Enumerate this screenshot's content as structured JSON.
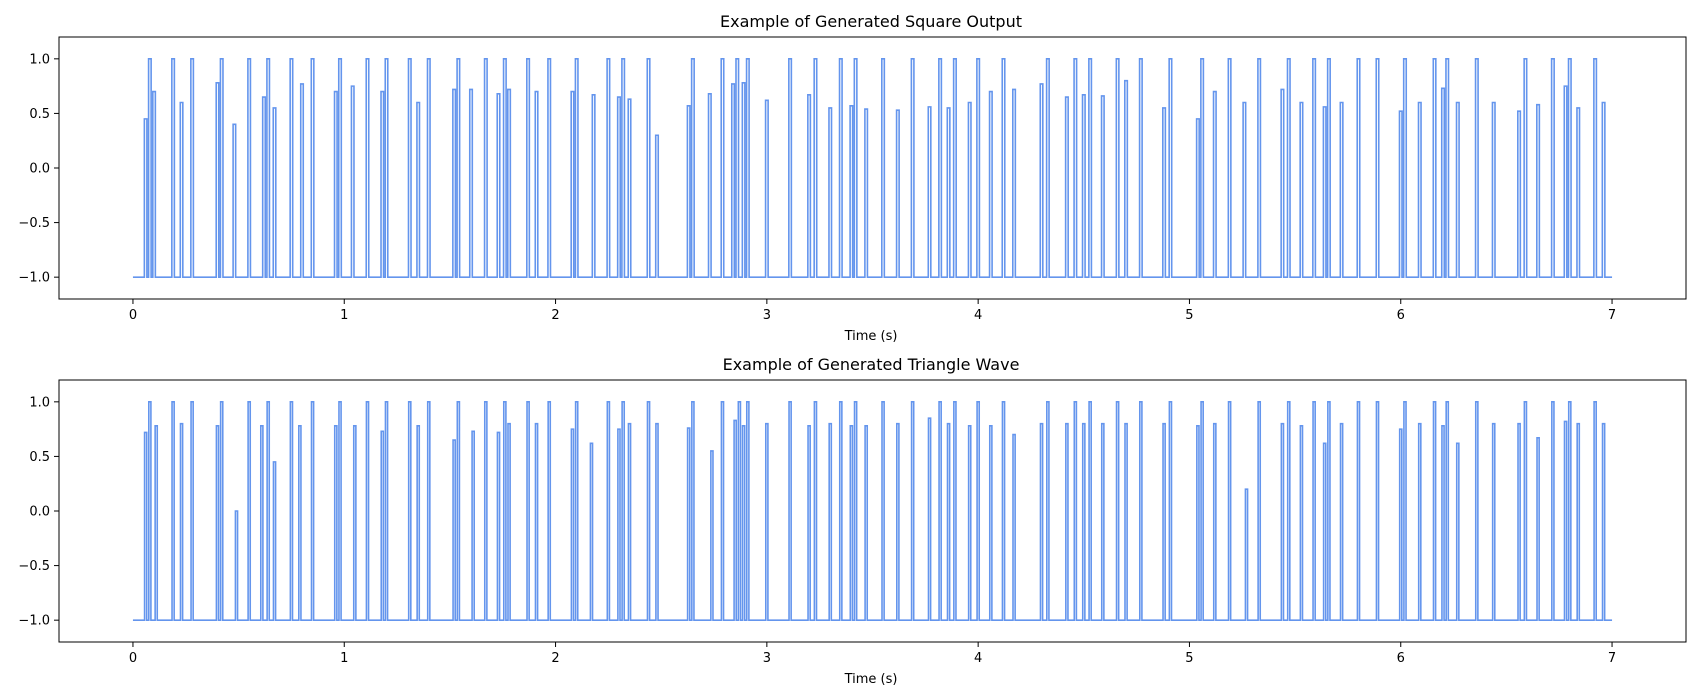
{
  "chart_data": [
    {
      "type": "line",
      "title": "Example of Generated Square Output",
      "xlabel": "Time (s)",
      "ylabel": "",
      "xlim": [
        -0.35,
        7.35
      ],
      "ylim": [
        -1.2,
        1.2
      ],
      "xticks": [
        0,
        1,
        2,
        3,
        4,
        5,
        6,
        7
      ],
      "yticks": [
        -1.0,
        -0.5,
        0.0,
        0.5,
        1.0
      ],
      "xtick_labels": [
        "0",
        "1",
        "2",
        "3",
        "4",
        "5",
        "6",
        "7"
      ],
      "ytick_labels": [
        "−1.0",
        "−0.5",
        "0.0",
        "0.5",
        "1.0"
      ],
      "grid": false,
      "baseline": -1.0,
      "pulse_width": 0.012,
      "series": [
        {
          "color": "#6495ed",
          "pulses": [
            [
              0.06,
              0.45
            ],
            [
              0.08,
              1.0
            ],
            [
              0.1,
              0.7
            ],
            [
              0.19,
              1.0
            ],
            [
              0.23,
              0.6
            ],
            [
              0.28,
              1.0
            ],
            [
              0.4,
              0.78
            ],
            [
              0.42,
              1.0
            ],
            [
              0.48,
              0.4
            ],
            [
              0.55,
              1.0
            ],
            [
              0.62,
              0.65
            ],
            [
              0.64,
              1.0
            ],
            [
              0.67,
              0.55
            ],
            [
              0.75,
              1.0
            ],
            [
              0.8,
              0.77
            ],
            [
              0.85,
              1.0
            ],
            [
              0.96,
              0.7
            ],
            [
              0.98,
              1.0
            ],
            [
              1.04,
              0.75
            ],
            [
              1.11,
              1.0
            ],
            [
              1.18,
              0.7
            ],
            [
              1.2,
              1.0
            ],
            [
              1.31,
              1.0
            ],
            [
              1.35,
              0.6
            ],
            [
              1.4,
              1.0
            ],
            [
              1.52,
              0.72
            ],
            [
              1.54,
              1.0
            ],
            [
              1.6,
              0.72
            ],
            [
              1.67,
              1.0
            ],
            [
              1.73,
              0.68
            ],
            [
              1.76,
              1.0
            ],
            [
              1.78,
              0.72
            ],
            [
              1.87,
              1.0
            ],
            [
              1.91,
              0.7
            ],
            [
              1.97,
              1.0
            ],
            [
              2.08,
              0.7
            ],
            [
              2.1,
              1.0
            ],
            [
              2.18,
              0.67
            ],
            [
              2.25,
              1.0
            ],
            [
              2.3,
              0.65
            ],
            [
              2.32,
              1.0
            ],
            [
              2.35,
              0.63
            ],
            [
              2.44,
              1.0
            ],
            [
              2.48,
              0.3
            ],
            [
              2.63,
              0.57
            ],
            [
              2.65,
              1.0
            ],
            [
              2.73,
              0.68
            ],
            [
              2.79,
              1.0
            ],
            [
              2.84,
              0.77
            ],
            [
              2.86,
              1.0
            ],
            [
              2.89,
              0.78
            ],
            [
              2.91,
              1.0
            ],
            [
              3.0,
              0.62
            ],
            [
              3.11,
              1.0
            ],
            [
              3.2,
              0.67
            ],
            [
              3.23,
              1.0
            ],
            [
              3.3,
              0.55
            ],
            [
              3.35,
              1.0
            ],
            [
              3.4,
              0.57
            ],
            [
              3.42,
              1.0
            ],
            [
              3.47,
              0.54
            ],
            [
              3.55,
              1.0
            ],
            [
              3.62,
              0.53
            ],
            [
              3.69,
              1.0
            ],
            [
              3.77,
              0.56
            ],
            [
              3.82,
              1.0
            ],
            [
              3.86,
              0.55
            ],
            [
              3.89,
              1.0
            ],
            [
              3.96,
              0.6
            ],
            [
              4.0,
              1.0
            ],
            [
              4.06,
              0.7
            ],
            [
              4.12,
              1.0
            ],
            [
              4.17,
              0.72
            ],
            [
              4.3,
              0.77
            ],
            [
              4.33,
              1.0
            ],
            [
              4.42,
              0.65
            ],
            [
              4.46,
              1.0
            ],
            [
              4.5,
              0.67
            ],
            [
              4.53,
              1.0
            ],
            [
              4.59,
              0.66
            ],
            [
              4.66,
              1.0
            ],
            [
              4.7,
              0.8
            ],
            [
              4.77,
              1.0
            ],
            [
              4.88,
              0.55
            ],
            [
              4.91,
              1.0
            ],
            [
              5.04,
              0.45
            ],
            [
              5.06,
              1.0
            ],
            [
              5.12,
              0.7
            ],
            [
              5.19,
              1.0
            ],
            [
              5.26,
              0.6
            ],
            [
              5.33,
              1.0
            ],
            [
              5.44,
              0.72
            ],
            [
              5.47,
              1.0
            ],
            [
              5.53,
              0.6
            ],
            [
              5.59,
              1.0
            ],
            [
              5.64,
              0.56
            ],
            [
              5.66,
              1.0
            ],
            [
              5.72,
              0.6
            ],
            [
              5.8,
              1.0
            ],
            [
              5.89,
              1.0
            ],
            [
              6.0,
              0.52
            ],
            [
              6.02,
              1.0
            ],
            [
              6.09,
              0.6
            ],
            [
              6.16,
              1.0
            ],
            [
              6.2,
              0.73
            ],
            [
              6.22,
              1.0
            ],
            [
              6.27,
              0.6
            ],
            [
              6.36,
              1.0
            ],
            [
              6.44,
              0.6
            ],
            [
              6.56,
              0.52
            ],
            [
              6.59,
              1.0
            ],
            [
              6.65,
              0.58
            ],
            [
              6.72,
              1.0
            ],
            [
              6.78,
              0.75
            ],
            [
              6.8,
              1.0
            ],
            [
              6.84,
              0.55
            ],
            [
              6.92,
              1.0
            ],
            [
              6.96,
              0.6
            ]
          ]
        }
      ]
    },
    {
      "type": "line",
      "title": "Example of Generated Triangle Wave",
      "xlabel": "Time (s)",
      "ylabel": "",
      "xlim": [
        -0.35,
        7.35
      ],
      "ylim": [
        -1.2,
        1.2
      ],
      "xticks": [
        0,
        1,
        2,
        3,
        4,
        5,
        6,
        7
      ],
      "yticks": [
        -1.0,
        -0.5,
        0.0,
        0.5,
        1.0
      ],
      "xtick_labels": [
        "0",
        "1",
        "2",
        "3",
        "4",
        "5",
        "6",
        "7"
      ],
      "ytick_labels": [
        "−1.0",
        "−0.5",
        "0.0",
        "0.5",
        "1.0"
      ],
      "grid": false,
      "baseline": -1.0,
      "pulse_width": 0.01,
      "series": [
        {
          "color": "#6495ed",
          "pulses": [
            [
              0.06,
              0.72
            ],
            [
              0.08,
              1.0
            ],
            [
              0.11,
              0.78
            ],
            [
              0.19,
              1.0
            ],
            [
              0.23,
              0.8
            ],
            [
              0.28,
              1.0
            ],
            [
              0.4,
              0.78
            ],
            [
              0.42,
              1.0
            ],
            [
              0.49,
              0.0
            ],
            [
              0.55,
              1.0
            ],
            [
              0.61,
              0.78
            ],
            [
              0.64,
              1.0
            ],
            [
              0.67,
              0.45
            ],
            [
              0.75,
              1.0
            ],
            [
              0.79,
              0.78
            ],
            [
              0.85,
              1.0
            ],
            [
              0.96,
              0.78
            ],
            [
              0.98,
              1.0
            ],
            [
              1.05,
              0.78
            ],
            [
              1.11,
              1.0
            ],
            [
              1.18,
              0.73
            ],
            [
              1.2,
              1.0
            ],
            [
              1.31,
              1.0
            ],
            [
              1.35,
              0.78
            ],
            [
              1.4,
              1.0
            ],
            [
              1.52,
              0.65
            ],
            [
              1.54,
              1.0
            ],
            [
              1.61,
              0.73
            ],
            [
              1.67,
              1.0
            ],
            [
              1.73,
              0.72
            ],
            [
              1.76,
              1.0
            ],
            [
              1.78,
              0.8
            ],
            [
              1.87,
              1.0
            ],
            [
              1.91,
              0.8
            ],
            [
              1.97,
              1.0
            ],
            [
              2.08,
              0.75
            ],
            [
              2.1,
              1.0
            ],
            [
              2.17,
              0.62
            ],
            [
              2.25,
              1.0
            ],
            [
              2.3,
              0.75
            ],
            [
              2.32,
              1.0
            ],
            [
              2.35,
              0.8
            ],
            [
              2.44,
              1.0
            ],
            [
              2.48,
              0.8
            ],
            [
              2.63,
              0.76
            ],
            [
              2.65,
              1.0
            ],
            [
              2.74,
              0.55
            ],
            [
              2.79,
              1.0
            ],
            [
              2.85,
              0.83
            ],
            [
              2.87,
              1.0
            ],
            [
              2.89,
              0.78
            ],
            [
              2.91,
              1.0
            ],
            [
              3.0,
              0.8
            ],
            [
              3.11,
              1.0
            ],
            [
              3.2,
              0.78
            ],
            [
              3.23,
              1.0
            ],
            [
              3.3,
              0.8
            ],
            [
              3.35,
              1.0
            ],
            [
              3.4,
              0.78
            ],
            [
              3.42,
              1.0
            ],
            [
              3.47,
              0.78
            ],
            [
              3.55,
              1.0
            ],
            [
              3.62,
              0.8
            ],
            [
              3.69,
              1.0
            ],
            [
              3.77,
              0.85
            ],
            [
              3.82,
              1.0
            ],
            [
              3.86,
              0.8
            ],
            [
              3.89,
              1.0
            ],
            [
              3.96,
              0.78
            ],
            [
              4.0,
              1.0
            ],
            [
              4.06,
              0.78
            ],
            [
              4.12,
              1.0
            ],
            [
              4.17,
              0.7
            ],
            [
              4.3,
              0.8
            ],
            [
              4.33,
              1.0
            ],
            [
              4.42,
              0.8
            ],
            [
              4.46,
              1.0
            ],
            [
              4.5,
              0.8
            ],
            [
              4.53,
              1.0
            ],
            [
              4.59,
              0.8
            ],
            [
              4.66,
              1.0
            ],
            [
              4.7,
              0.8
            ],
            [
              4.77,
              1.0
            ],
            [
              4.88,
              0.8
            ],
            [
              4.91,
              1.0
            ],
            [
              5.04,
              0.78
            ],
            [
              5.06,
              1.0
            ],
            [
              5.12,
              0.8
            ],
            [
              5.19,
              1.0
            ],
            [
              5.27,
              0.2
            ],
            [
              5.33,
              1.0
            ],
            [
              5.44,
              0.8
            ],
            [
              5.47,
              1.0
            ],
            [
              5.53,
              0.78
            ],
            [
              5.59,
              1.0
            ],
            [
              5.64,
              0.62
            ],
            [
              5.66,
              1.0
            ],
            [
              5.72,
              0.8
            ],
            [
              5.8,
              1.0
            ],
            [
              5.89,
              1.0
            ],
            [
              6.0,
              0.75
            ],
            [
              6.02,
              1.0
            ],
            [
              6.09,
              0.8
            ],
            [
              6.16,
              1.0
            ],
            [
              6.2,
              0.78
            ],
            [
              6.22,
              1.0
            ],
            [
              6.27,
              0.62
            ],
            [
              6.36,
              1.0
            ],
            [
              6.44,
              0.8
            ],
            [
              6.56,
              0.8
            ],
            [
              6.59,
              1.0
            ],
            [
              6.65,
              0.67
            ],
            [
              6.72,
              1.0
            ],
            [
              6.78,
              0.82
            ],
            [
              6.8,
              1.0
            ],
            [
              6.84,
              0.8
            ],
            [
              6.92,
              1.0
            ],
            [
              6.96,
              0.8
            ]
          ]
        }
      ]
    }
  ]
}
